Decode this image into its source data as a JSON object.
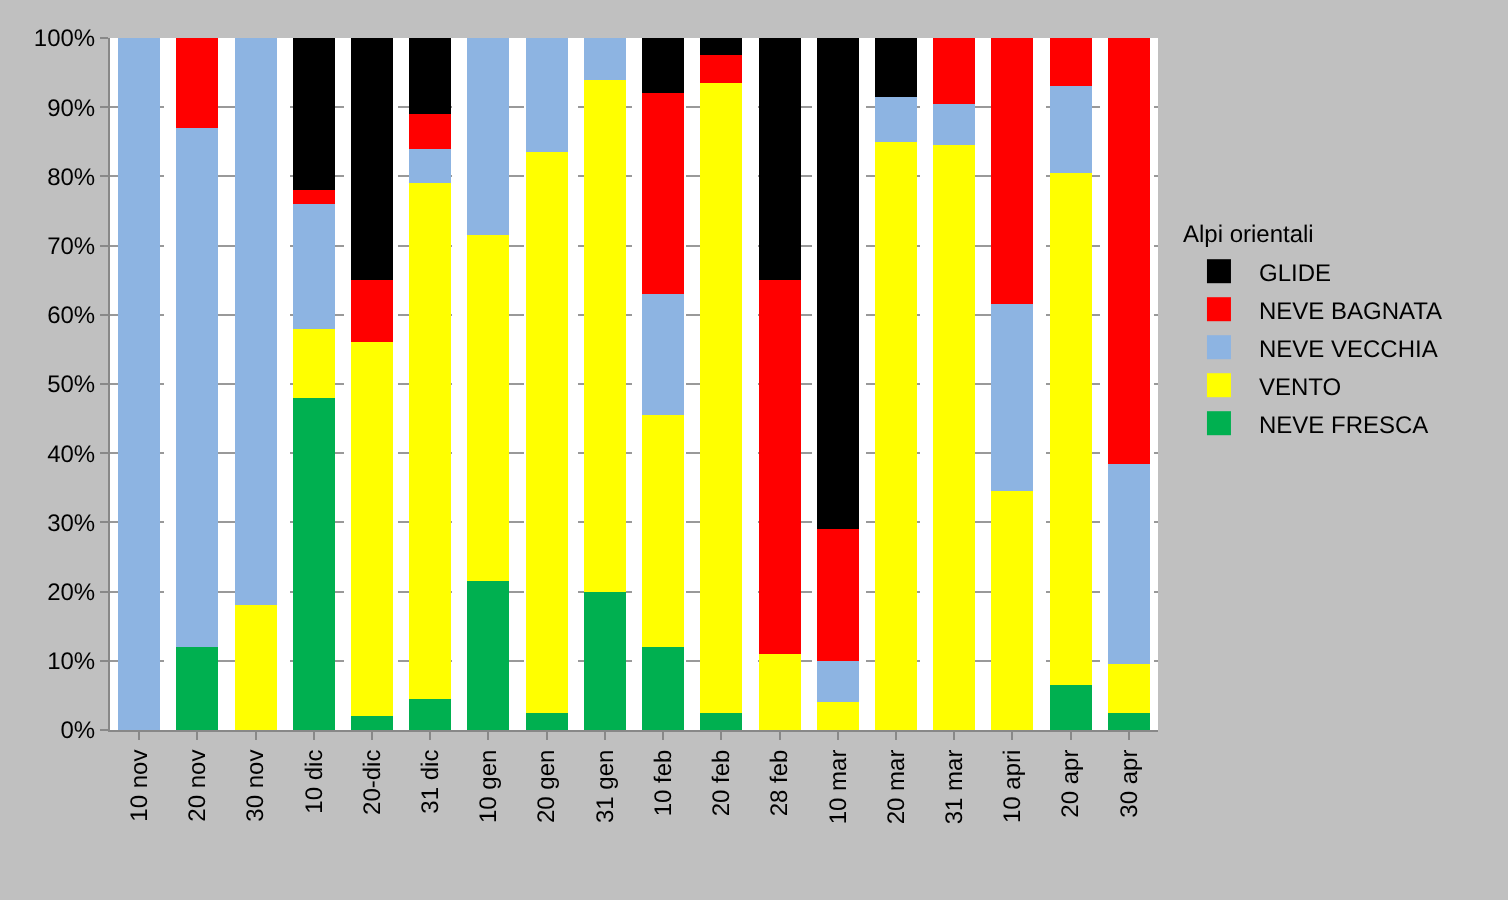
{
  "chart_data": {
    "type": "bar",
    "stacked": true,
    "legend_title": "Alpi orientali",
    "legend": "right",
    "grid": "y",
    "categories": [
      "10 nov",
      "20 nov",
      "30 nov",
      "10 dic",
      "20-dic",
      "31 dic",
      "10 gen",
      "20 gen",
      "31 gen",
      "10 feb",
      "20 feb",
      "28 feb",
      "10 mar",
      "20 mar",
      "31 mar",
      "10 apri",
      "20 apr",
      "30 apr"
    ],
    "ylim": [
      0,
      100
    ],
    "yticks": [
      {
        "value": 0,
        "label": "0%"
      },
      {
        "value": 10,
        "label": "10%"
      },
      {
        "value": 20,
        "label": "20%"
      },
      {
        "value": 30,
        "label": "30%"
      },
      {
        "value": 40,
        "label": "40%"
      },
      {
        "value": 50,
        "label": "50%"
      },
      {
        "value": 60,
        "label": "60%"
      },
      {
        "value": 70,
        "label": "70%"
      },
      {
        "value": 80,
        "label": "80%"
      },
      {
        "value": 90,
        "label": "90%"
      },
      {
        "value": 100,
        "label": "100%"
      }
    ],
    "series": [
      {
        "name": "NEVE FRESCA",
        "color": "#00b050",
        "values": [
          0,
          12,
          0,
          48,
          2,
          4.5,
          21.5,
          2.5,
          20,
          12,
          2.5,
          0,
          0,
          0,
          0,
          0,
          6.5,
          2.5
        ]
      },
      {
        "name": "VENTO",
        "color": "#ffff00",
        "values": [
          0,
          0,
          18,
          10,
          54,
          74.5,
          50,
          81,
          74,
          33.5,
          91,
          11,
          4,
          85,
          84.5,
          34.5,
          74,
          7
        ]
      },
      {
        "name": "NEVE VECCHIA",
        "color": "#8db4e2",
        "values": [
          100,
          75,
          82,
          18,
          0,
          5,
          28.5,
          16.5,
          6,
          17.5,
          0,
          0,
          6,
          6.5,
          6,
          27,
          12.5,
          29
        ]
      },
      {
        "name": "NEVE BAGNATA",
        "color": "#ff0000",
        "values": [
          0,
          13,
          0,
          2,
          9,
          5,
          0,
          0,
          0,
          29,
          4,
          54,
          19,
          0,
          9.5,
          38.5,
          7,
          61.5
        ]
      },
      {
        "name": "GLIDE",
        "color": "#000000",
        "values": [
          0,
          0,
          0,
          22,
          35,
          11,
          0,
          0,
          0,
          8,
          2.5,
          35,
          71,
          8.5,
          0,
          0,
          0,
          0
        ]
      }
    ]
  }
}
